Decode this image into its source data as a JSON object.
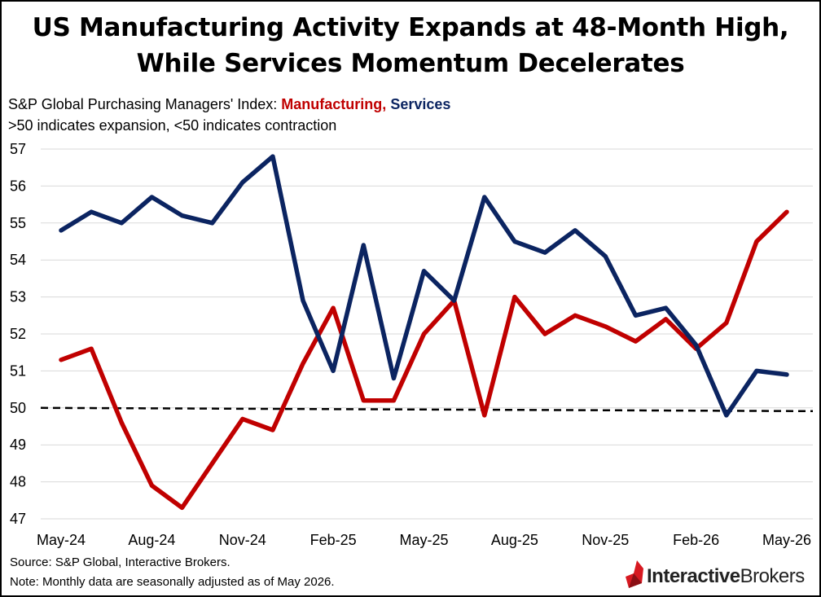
{
  "title_line1": "US Manufacturing Activity Expands at 48-Month High,",
  "title_line2": "While Services Momentum Decelerates",
  "subtitle_prefix": "S&P Global Purchasing Managers' Index: ",
  "subtitle_mfg": "Manufacturing",
  "subtitle_sep": ", ",
  "subtitle_svc": "Services",
  "subtitle2": ">50 indicates expansion, <50 indicates contraction",
  "source": "Source: S&P Global, Interactive Brokers.",
  "note": "Note: Monthly data are seasonally adjusted as of May 2026.",
  "logo": {
    "part1": "Interactive",
    "part2": "Brokers",
    "mark_color": "#d71921"
  },
  "chart_data": {
    "type": "line",
    "x": [
      "May-24",
      "Jun-24",
      "Jul-24",
      "Aug-24",
      "Sep-24",
      "Oct-24",
      "Nov-24",
      "Dec-24",
      "Jan-25",
      "Feb-25",
      "Mar-25",
      "Apr-25",
      "May-25",
      "Jun-25",
      "Jul-25",
      "Aug-25",
      "Sep-25",
      "Oct-25",
      "Nov-25",
      "Dec-25",
      "Jan-26",
      "Feb-26",
      "Mar-26",
      "Apr-26",
      "May-26"
    ],
    "x_tick_labels": [
      "May-24",
      "Aug-24",
      "Nov-24",
      "Feb-25",
      "May-25",
      "Aug-25",
      "Nov-25",
      "Feb-26",
      "May-26"
    ],
    "ylim": [
      47,
      57
    ],
    "y_ticks": [
      47,
      48,
      49,
      50,
      51,
      52,
      53,
      54,
      55,
      56,
      57
    ],
    "grid": true,
    "reference_line": {
      "y": 50,
      "style": "dashed",
      "color": "#000000"
    },
    "series": [
      {
        "name": "Manufacturing",
        "color": "#c00000",
        "values": [
          51.3,
          51.6,
          49.6,
          47.9,
          47.3,
          48.5,
          49.7,
          49.4,
          51.2,
          52.7,
          50.2,
          50.2,
          52.0,
          52.9,
          49.8,
          53.0,
          52.0,
          52.5,
          52.2,
          51.8,
          52.4,
          51.6,
          52.3,
          54.5,
          55.3
        ]
      },
      {
        "name": "Services",
        "color": "#0b2461",
        "values": [
          54.8,
          55.3,
          55.0,
          55.7,
          55.2,
          55.0,
          56.1,
          56.8,
          52.9,
          51.0,
          54.4,
          50.8,
          53.7,
          52.9,
          55.7,
          54.5,
          54.2,
          54.8,
          54.1,
          52.5,
          52.7,
          51.7,
          49.8,
          51.0,
          50.9
        ]
      }
    ]
  }
}
